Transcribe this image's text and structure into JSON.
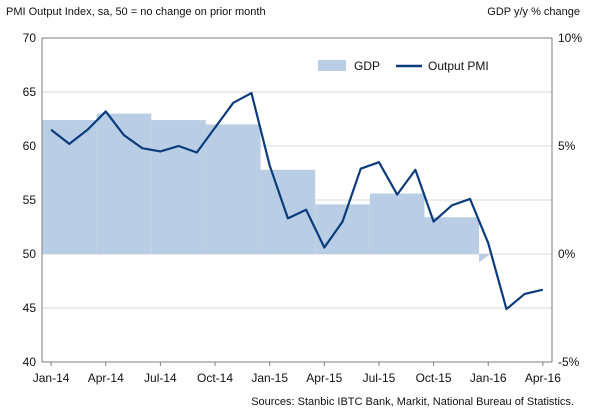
{
  "chart_data": {
    "type": "line",
    "left_axis_title": "PMI Output Index, sa, 50 = no change on prior month",
    "right_axis_title": "GDP y/y % change",
    "source": "Sources: Stanbic IBTC Bank, Markit, National Bureau of Statistics.",
    "legend": {
      "placement": "top-right",
      "items": [
        "GDP",
        "Output PMI"
      ]
    },
    "grid": "horizontal",
    "colors": {
      "pmi_line": "#0b3c7d",
      "gdp_area": "#b9cde5",
      "grid": "#d9d9d9",
      "axis": "#7f7f7f"
    },
    "y_left": {
      "min": 40,
      "max": 70,
      "ticks": [
        40,
        45,
        50,
        55,
        60,
        65,
        70
      ]
    },
    "y_right": {
      "min": -5,
      "max": 10,
      "ticks": [
        -5,
        0,
        5,
        10
      ],
      "tick_labels": [
        "-5%",
        "0%",
        "5%",
        "10%"
      ]
    },
    "x_ticks": [
      {
        "label": "Jan-14",
        "index": 0
      },
      {
        "label": "Apr-14",
        "index": 3
      },
      {
        "label": "Jul-14",
        "index": 6
      },
      {
        "label": "Oct-14",
        "index": 9
      },
      {
        "label": "Jan-15",
        "index": 12
      },
      {
        "label": "Apr-15",
        "index": 15
      },
      {
        "label": "Jul-15",
        "index": 18
      },
      {
        "label": "Oct-15",
        "index": 21
      },
      {
        "label": "Jan-16",
        "index": 24
      },
      {
        "label": "Apr-16",
        "index": 27
      }
    ],
    "series": [
      {
        "name": "Output PMI",
        "axis": "left",
        "months": [
          "Jan-14",
          "Feb-14",
          "Mar-14",
          "Apr-14",
          "May-14",
          "Jun-14",
          "Jul-14",
          "Aug-14",
          "Sep-14",
          "Oct-14",
          "Nov-14",
          "Dec-14",
          "Jan-15",
          "Feb-15",
          "Mar-15",
          "Apr-15",
          "May-15",
          "Jun-15",
          "Jul-15",
          "Aug-15",
          "Sep-15",
          "Oct-15",
          "Nov-15",
          "Dec-15",
          "Jan-16",
          "Feb-16",
          "Mar-16",
          "Apr-16"
        ],
        "values": [
          61.5,
          60.2,
          61.5,
          63.2,
          61.0,
          59.8,
          59.5,
          60.0,
          59.4,
          61.7,
          64.0,
          64.9,
          58.2,
          53.3,
          54.1,
          50.6,
          53.0,
          57.9,
          58.5,
          55.5,
          57.8,
          53.0,
          54.5,
          55.1,
          51.0,
          44.9,
          46.3,
          46.7
        ]
      },
      {
        "name": "GDP",
        "axis": "right",
        "type": "step-area",
        "quarters": [
          "Q1-14",
          "Q2-14",
          "Q3-14",
          "Q4-14",
          "Q1-15",
          "Q2-15",
          "Q3-15",
          "Q4-15",
          "Q1-16"
        ],
        "values": [
          6.2,
          6.5,
          6.2,
          6.0,
          3.9,
          2.3,
          2.8,
          1.7,
          -0.4
        ]
      }
    ]
  }
}
